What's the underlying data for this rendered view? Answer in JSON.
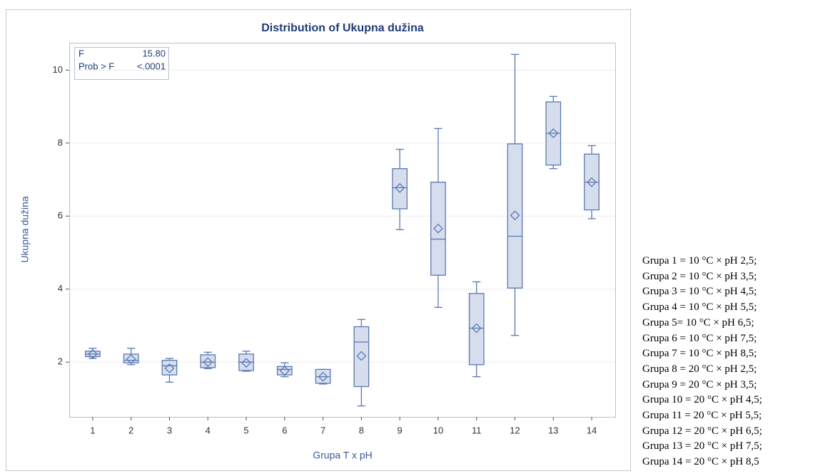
{
  "chart_data": {
    "type": "box",
    "title": "Distribution of Ukupna dužina",
    "x_label": "Grupa T x pH",
    "y_label": "Ukupna dužina",
    "categories": [
      "1",
      "2",
      "3",
      "4",
      "5",
      "6",
      "7",
      "8",
      "9",
      "10",
      "11",
      "12",
      "13",
      "14"
    ],
    "boxes": [
      {
        "min": 2.1,
        "q1": 2.15,
        "median": 2.22,
        "q3": 2.3,
        "max": 2.38,
        "mean": 2.22
      },
      {
        "min": 1.93,
        "q1": 1.98,
        "median": 2.05,
        "q3": 2.22,
        "max": 2.38,
        "mean": 2.08
      },
      {
        "min": 1.45,
        "q1": 1.65,
        "median": 1.9,
        "q3": 2.05,
        "max": 2.1,
        "mean": 1.83
      },
      {
        "min": 1.82,
        "q1": 1.85,
        "median": 2.0,
        "q3": 2.2,
        "max": 2.27,
        "mean": 2.0
      },
      {
        "min": 1.75,
        "q1": 1.77,
        "median": 2.0,
        "q3": 2.22,
        "max": 2.3,
        "mean": 1.98
      },
      {
        "min": 1.6,
        "q1": 1.65,
        "median": 1.8,
        "q3": 1.88,
        "max": 1.98,
        "mean": 1.76
      },
      {
        "min": 1.4,
        "q1": 1.42,
        "median": 1.6,
        "q3": 1.8,
        "max": 1.8,
        "mean": 1.6
      },
      {
        "min": 0.8,
        "q1": 1.33,
        "median": 2.55,
        "q3": 2.97,
        "max": 3.17,
        "mean": 2.17
      },
      {
        "min": 5.63,
        "q1": 6.2,
        "median": 6.78,
        "q3": 7.3,
        "max": 7.83,
        "mean": 6.77
      },
      {
        "min": 3.5,
        "q1": 4.38,
        "median": 5.37,
        "q3": 6.93,
        "max": 8.4,
        "mean": 5.66
      },
      {
        "min": 1.6,
        "q1": 1.93,
        "median": 2.93,
        "q3": 3.88,
        "max": 4.2,
        "mean": 2.93
      },
      {
        "min": 2.73,
        "q1": 4.03,
        "median": 5.45,
        "q3": 7.98,
        "max": 10.43,
        "mean": 6.02
      },
      {
        "min": 7.3,
        "q1": 7.4,
        "median": 8.27,
        "q3": 9.13,
        "max": 9.28,
        "mean": 8.27
      },
      {
        "min": 5.93,
        "q1": 6.17,
        "median": 6.93,
        "q3": 7.7,
        "max": 7.93,
        "mean": 6.93
      }
    ],
    "ylim": [
      0.5,
      10.75
    ],
    "yticks": [
      2,
      4,
      6,
      8,
      10
    ],
    "grid": true,
    "box_fill": "#d6deee",
    "box_stroke": "#5a78b4",
    "stats": [
      [
        "F",
        "15.80"
      ],
      [
        "Prob > F",
        "<.0001"
      ]
    ]
  },
  "notes": [
    "Grupa 1 = 10 °C × pH 2,5;",
    "Grupa 2 = 10 °C × pH 3,5;",
    "Grupa 3 = 10 °C × pH 4,5;",
    "Grupa 4 = 10 °C × pH 5,5;",
    "Grupa 5= 10 °C × pH 6,5;",
    "Grupa 6 = 10 °C × pH 7,5;",
    "Grupa 7 = 10 °C × pH 8,5;",
    "Grupa 8 = 20 °C × pH 2,5;",
    "Grupa 9 = 20 °C × pH 3,5;",
    "Grupa 10 = 20 °C × pH 4,5;",
    "Grupa 11 = 20 °C × pH 5,5;",
    "Grupa 12 = 20 °C × pH 6,5;",
    "Grupa 13 = 20 °C × pH 7,5;",
    "Grupa 14 = 20 °C × pH 8,5"
  ]
}
